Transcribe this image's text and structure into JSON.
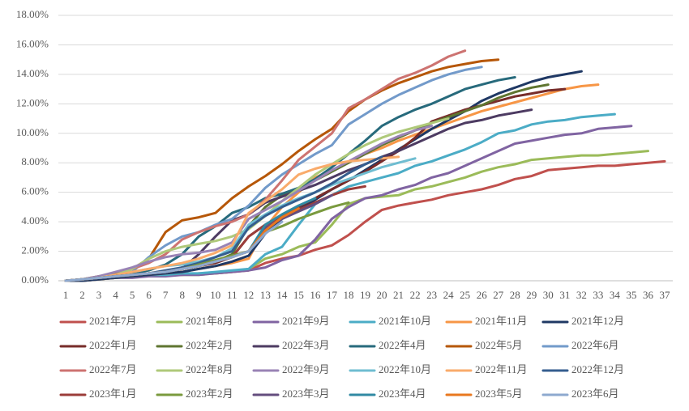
{
  "chart_data": {
    "type": "line",
    "categories": [
      1,
      2,
      3,
      4,
      5,
      6,
      7,
      8,
      9,
      10,
      11,
      12,
      13,
      14,
      15,
      16,
      17,
      18,
      19,
      20,
      21,
      22,
      23,
      24,
      25,
      26,
      27,
      28,
      29,
      30,
      31,
      32,
      33,
      34,
      35,
      36,
      37
    ],
    "ylim": [
      0,
      18
    ],
    "yticks": [
      {
        "value": 0,
        "label": "0.00%"
      },
      {
        "value": 2,
        "label": "2.00%"
      },
      {
        "value": 4,
        "label": "4.00%"
      },
      {
        "value": 6,
        "label": "6.00%"
      },
      {
        "value": 8,
        "label": "8.00%"
      },
      {
        "value": 10,
        "label": "10.00%"
      },
      {
        "value": 12,
        "label": "12.00%"
      },
      {
        "value": 14,
        "label": "14.00%"
      },
      {
        "value": 16,
        "label": "16.00%"
      },
      {
        "value": 18,
        "label": "18.00%"
      }
    ],
    "grid": true,
    "legend": "bottom",
    "series": [
      {
        "name": "2021年7月",
        "color": "#c0504d",
        "values": [
          0,
          0,
          0.1,
          0.2,
          0.3,
          0.3,
          0.4,
          0.4,
          0.5,
          0.5,
          0.6,
          0.7,
          1.2,
          1.5,
          1.7,
          2.1,
          2.4,
          3.1,
          4.0,
          4.8,
          5.1,
          5.3,
          5.5,
          5.8,
          6.0,
          6.2,
          6.5,
          6.9,
          7.1,
          7.5,
          7.6,
          7.7,
          7.8,
          7.8,
          7.9,
          8.0,
          8.1
        ]
      },
      {
        "name": "2021年8月",
        "color": "#9bbb59",
        "values": [
          0,
          0,
          0.1,
          0.2,
          0.3,
          0.4,
          0.4,
          0.4,
          0.4,
          0.5,
          0.6,
          0.8,
          1.5,
          1.8,
          2.3,
          2.6,
          3.8,
          5.2,
          5.6,
          5.7,
          5.8,
          6.2,
          6.4,
          6.7,
          7.0,
          7.4,
          7.7,
          7.9,
          8.2,
          8.3,
          8.4,
          8.5,
          8.5,
          8.6,
          8.7,
          8.8,
          null
        ]
      },
      {
        "name": "2021年9月",
        "color": "#8064a2",
        "values": [
          0,
          0,
          0.1,
          0.2,
          0.2,
          0.3,
          0.3,
          0.4,
          0.4,
          0.5,
          0.6,
          0.7,
          0.9,
          1.4,
          1.7,
          2.8,
          4.2,
          5.0,
          5.6,
          5.8,
          6.2,
          6.5,
          7.0,
          7.3,
          7.8,
          8.3,
          8.8,
          9.3,
          9.5,
          9.7,
          9.9,
          10.0,
          10.3,
          10.4,
          10.5,
          null,
          null
        ]
      },
      {
        "name": "2021年10月",
        "color": "#4bacc6",
        "values": [
          0,
          0,
          0.1,
          0.2,
          0.3,
          0.4,
          0.4,
          0.5,
          0.5,
          0.6,
          0.7,
          0.8,
          1.8,
          2.3,
          3.8,
          5.2,
          5.8,
          6.4,
          6.7,
          7.0,
          7.3,
          7.8,
          8.1,
          8.5,
          8.9,
          9.4,
          10.0,
          10.2,
          10.6,
          10.8,
          10.9,
          11.1,
          11.2,
          11.3,
          null,
          null,
          null
        ]
      },
      {
        "name": "2021年11月",
        "color": "#f79646",
        "values": [
          0,
          0,
          0.1,
          0.2,
          0.3,
          0.4,
          0.5,
          0.6,
          0.8,
          1.0,
          1.2,
          1.5,
          3.6,
          5.0,
          6.0,
          7.0,
          7.5,
          8.0,
          8.6,
          9.0,
          9.5,
          9.9,
          10.3,
          10.7,
          11.1,
          11.5,
          11.8,
          12.1,
          12.4,
          12.7,
          13.0,
          13.2,
          13.3,
          null,
          null,
          null,
          null
        ]
      },
      {
        "name": "2021年12月",
        "color": "#1f3864",
        "values": [
          0,
          0,
          0.1,
          0.2,
          0.3,
          0.4,
          0.5,
          0.6,
          0.8,
          1.0,
          1.3,
          1.7,
          3.2,
          4.2,
          4.8,
          5.5,
          6.2,
          6.8,
          7.5,
          8.2,
          8.9,
          9.6,
          10.3,
          10.9,
          11.5,
          12.2,
          12.7,
          13.1,
          13.5,
          13.8,
          14.0,
          14.2,
          null,
          null,
          null,
          null,
          null
        ]
      },
      {
        "name": "2022年1月",
        "color": "#772c2a",
        "values": [
          0,
          0.1,
          0.2,
          0.3,
          0.4,
          0.5,
          0.6,
          0.8,
          1.0,
          1.2,
          1.6,
          3.0,
          3.8,
          4.4,
          5.0,
          5.6,
          6.2,
          6.8,
          7.4,
          8.1,
          8.8,
          9.7,
          10.8,
          11.2,
          11.6,
          11.9,
          12.2,
          12.5,
          12.7,
          12.9,
          13.0,
          null,
          null,
          null,
          null,
          null,
          null
        ]
      },
      {
        "name": "2022年2月",
        "color": "#5f7530",
        "values": [
          0,
          0.1,
          0.2,
          0.3,
          0.4,
          0.5,
          0.6,
          0.9,
          1.1,
          1.3,
          1.8,
          3.7,
          5.0,
          5.8,
          6.3,
          6.8,
          7.4,
          8.0,
          8.6,
          9.2,
          9.7,
          10.2,
          10.7,
          11.1,
          11.5,
          11.9,
          12.4,
          12.8,
          13.1,
          13.3,
          null,
          null,
          null,
          null,
          null,
          null,
          null
        ]
      },
      {
        "name": "2022年3月",
        "color": "#4d3b62",
        "values": [
          0,
          0.1,
          0.2,
          0.3,
          0.4,
          0.5,
          0.6,
          0.8,
          1.8,
          3.0,
          4.1,
          4.5,
          5.3,
          5.7,
          6.1,
          6.5,
          7.0,
          7.5,
          7.9,
          8.4,
          8.8,
          9.3,
          9.8,
          10.3,
          10.7,
          10.9,
          11.2,
          11.4,
          11.6,
          null,
          null,
          null,
          null,
          null,
          null,
          null,
          null
        ]
      },
      {
        "name": "2022年4月",
        "color": "#276a7c",
        "values": [
          0,
          0.1,
          0.2,
          0.3,
          0.5,
          0.7,
          1.1,
          1.8,
          3.0,
          3.7,
          4.6,
          5.0,
          5.6,
          5.9,
          6.3,
          6.9,
          7.7,
          8.6,
          9.5,
          10.5,
          11.1,
          11.6,
          12.0,
          12.5,
          13.0,
          13.3,
          13.6,
          13.8,
          null,
          null,
          null,
          null,
          null,
          null,
          null,
          null,
          null
        ]
      },
      {
        "name": "2022年5月",
        "color": "#b65708",
        "values": [
          0,
          0.1,
          0.3,
          0.5,
          0.8,
          1.5,
          3.3,
          4.1,
          4.3,
          4.6,
          5.6,
          6.4,
          7.1,
          7.9,
          8.8,
          9.6,
          10.3,
          11.5,
          12.3,
          12.9,
          13.4,
          13.8,
          14.2,
          14.5,
          14.7,
          14.9,
          15.0,
          null,
          null,
          null,
          null,
          null,
          null,
          null,
          null,
          null,
          null
        ]
      },
      {
        "name": "2022年6月",
        "color": "#729aca",
        "values": [
          0,
          0.1,
          0.2,
          0.4,
          0.6,
          1.6,
          2.4,
          3.0,
          3.3,
          3.8,
          4.2,
          5.1,
          6.3,
          7.2,
          7.9,
          8.6,
          9.2,
          10.6,
          11.3,
          12.0,
          12.6,
          13.1,
          13.6,
          14.0,
          14.3,
          14.5,
          null,
          null,
          null,
          null,
          null,
          null,
          null,
          null,
          null,
          null,
          null
        ]
      },
      {
        "name": "2022年7月",
        "color": "#cd7371",
        "values": [
          0,
          0.1,
          0.2,
          0.3,
          0.8,
          1.2,
          1.8,
          2.8,
          3.3,
          3.7,
          4.0,
          4.5,
          5.5,
          6.8,
          8.2,
          9.1,
          10.0,
          11.7,
          12.3,
          13.0,
          13.7,
          14.1,
          14.6,
          15.2,
          15.6,
          null,
          null,
          null,
          null,
          null,
          null,
          null,
          null,
          null,
          null,
          null,
          null
        ]
      },
      {
        "name": "2022年8月",
        "color": "#afc97a",
        "values": [
          0,
          0.1,
          0.2,
          0.4,
          0.8,
          1.5,
          2.0,
          2.3,
          2.5,
          2.7,
          3.0,
          3.5,
          4.4,
          5.4,
          6.3,
          7.2,
          7.9,
          8.6,
          9.2,
          9.7,
          10.1,
          10.4,
          10.7,
          11.0,
          null,
          null,
          null,
          null,
          null,
          null,
          null,
          null,
          null,
          null,
          null,
          null,
          null
        ]
      },
      {
        "name": "2022年9月",
        "color": "#9983b5",
        "values": [
          0,
          0.1,
          0.3,
          0.6,
          0.9,
          1.3,
          1.6,
          1.8,
          1.9,
          2.1,
          2.6,
          4.2,
          4.8,
          5.4,
          6.1,
          6.8,
          7.5,
          8.1,
          8.7,
          9.3,
          9.8,
          10.2,
          10.5,
          null,
          null,
          null,
          null,
          null,
          null,
          null,
          null,
          null,
          null,
          null,
          null,
          null,
          null
        ]
      },
      {
        "name": "2022年10月",
        "color": "#6fbdd1",
        "values": [
          0,
          0.1,
          0.2,
          0.4,
          0.6,
          0.8,
          1.0,
          1.1,
          1.3,
          1.6,
          2.2,
          3.8,
          4.5,
          5.1,
          5.6,
          6.0,
          6.5,
          6.9,
          7.3,
          7.7,
          8.0,
          8.3,
          null,
          null,
          null,
          null,
          null,
          null,
          null,
          null,
          null,
          null,
          null,
          null,
          null,
          null,
          null
        ]
      },
      {
        "name": "2022年11月",
        "color": "#f9ab6b",
        "values": [
          0,
          0.1,
          0.2,
          0.4,
          0.6,
          0.8,
          1.0,
          1.2,
          1.5,
          1.9,
          2.4,
          4.6,
          5.4,
          6.2,
          7.2,
          7.6,
          7.9,
          8.1,
          8.2,
          8.3,
          8.4,
          null,
          null,
          null,
          null,
          null,
          null,
          null,
          null,
          null,
          null,
          null,
          null,
          null,
          null,
          null,
          null
        ]
      },
      {
        "name": "2022年12月",
        "color": "#355e8f",
        "values": [
          0,
          0.1,
          0.2,
          0.3,
          0.4,
          0.5,
          0.7,
          0.9,
          1.2,
          1.6,
          2.0,
          3.6,
          4.4,
          5.0,
          5.5,
          6.0,
          6.6,
          7.3,
          7.9,
          8.4,
          null,
          null,
          null,
          null,
          null,
          null,
          null,
          null,
          null,
          null,
          null,
          null,
          null,
          null,
          null,
          null,
          null
        ]
      },
      {
        "name": "2023年1月",
        "color": "#9b3d3a",
        "values": [
          0,
          0.1,
          0.2,
          0.3,
          0.4,
          0.5,
          0.6,
          0.8,
          1.0,
          1.3,
          1.6,
          3.0,
          3.8,
          4.3,
          4.8,
          5.3,
          5.8,
          6.2,
          6.4,
          null,
          null,
          null,
          null,
          null,
          null,
          null,
          null,
          null,
          null,
          null,
          null,
          null,
          null,
          null,
          null,
          null,
          null
        ]
      },
      {
        "name": "2023年2月",
        "color": "#7a9a3e",
        "values": [
          0,
          0.1,
          0.2,
          0.3,
          0.4,
          0.5,
          0.6,
          0.8,
          1.1,
          1.4,
          1.7,
          2.0,
          3.3,
          3.7,
          4.2,
          4.6,
          5.0,
          5.3,
          null,
          null,
          null,
          null,
          null,
          null,
          null,
          null,
          null,
          null,
          null,
          null,
          null,
          null,
          null,
          null,
          null,
          null,
          null
        ]
      },
      {
        "name": "2023年3月",
        "color": "#644d7e",
        "values": [
          0,
          0.1,
          0.2,
          0.3,
          0.4,
          0.5,
          0.6,
          0.8,
          1.0,
          1.3,
          1.6,
          2.0,
          3.6,
          4.2,
          4.7,
          5.2,
          5.8,
          null,
          null,
          null,
          null,
          null,
          null,
          null,
          null,
          null,
          null,
          null,
          null,
          null,
          null,
          null,
          null,
          null,
          null,
          null,
          null
        ]
      },
      {
        "name": "2023年4月",
        "color": "#318aa3",
        "values": [
          0,
          0.1,
          0.2,
          0.3,
          0.4,
          0.5,
          0.6,
          0.8,
          1.0,
          1.3,
          1.6,
          2.0,
          3.8,
          4.5,
          5.1,
          5.6,
          null,
          null,
          null,
          null,
          null,
          null,
          null,
          null,
          null,
          null,
          null,
          null,
          null,
          null,
          null,
          null,
          null,
          null,
          null,
          null,
          null
        ]
      },
      {
        "name": "2023年5月",
        "color": "#e9781f",
        "values": [
          0,
          0.1,
          0.2,
          0.3,
          0.4,
          0.5,
          0.6,
          0.8,
          1.0,
          1.3,
          1.6,
          2.0,
          3.4,
          4.3,
          4.9,
          null,
          null,
          null,
          null,
          null,
          null,
          null,
          null,
          null,
          null,
          null,
          null,
          null,
          null,
          null,
          null,
          null,
          null,
          null,
          null,
          null,
          null
        ]
      },
      {
        "name": "2023年6月",
        "color": "#8ea9cf",
        "values": [
          0,
          0.1,
          0.2,
          0.3,
          0.4,
          0.5,
          0.6,
          0.8,
          1.0,
          1.3,
          1.6,
          2.0,
          3.2,
          4.0,
          null,
          null,
          null,
          null,
          null,
          null,
          null,
          null,
          null,
          null,
          null,
          null,
          null,
          null,
          null,
          null,
          null,
          null,
          null,
          null,
          null,
          null,
          null
        ]
      }
    ]
  }
}
